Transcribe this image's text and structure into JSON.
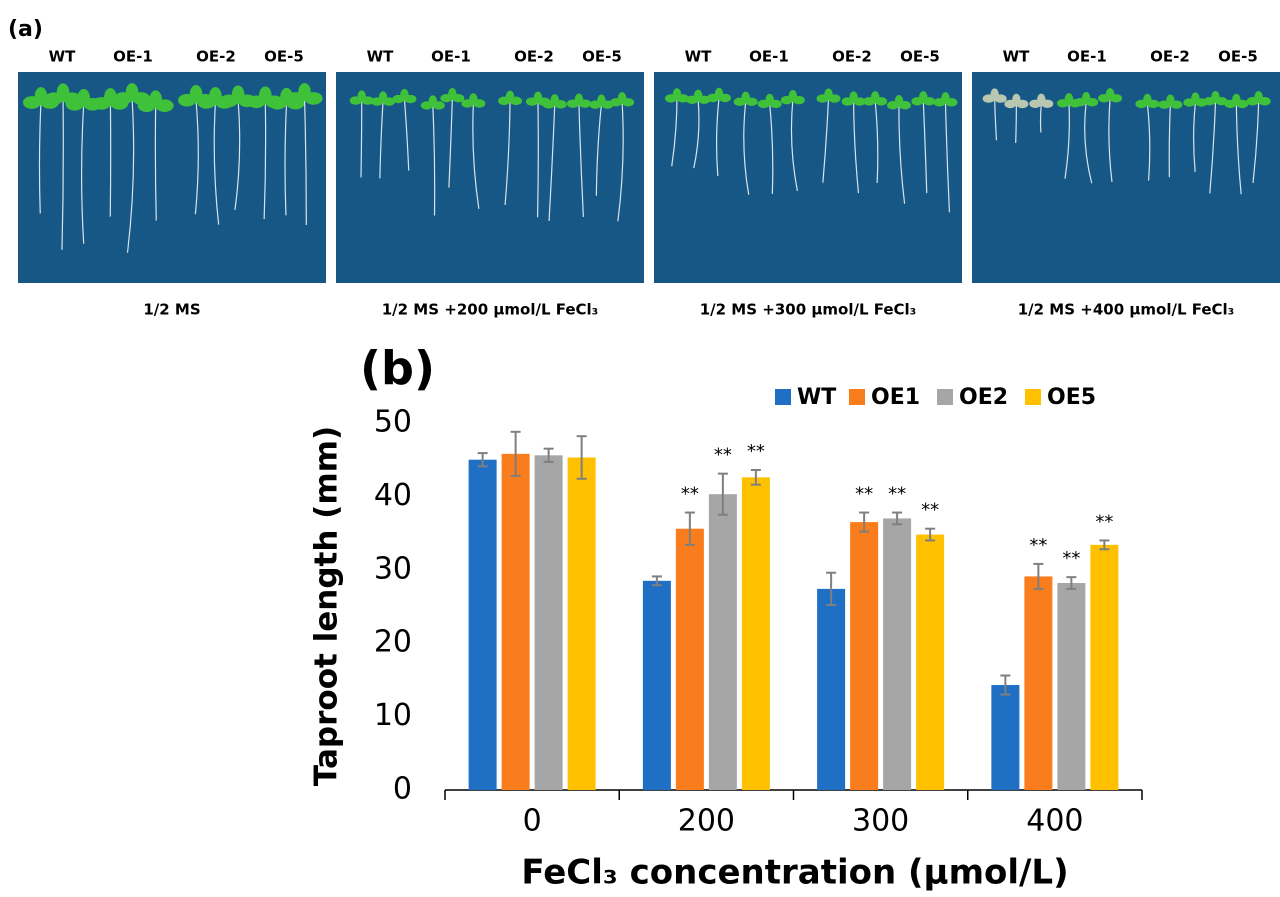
{
  "panel_a": {
    "label": "(a)",
    "panels": [
      {
        "lines": [
          "WT",
          "OE-1",
          "OE-2",
          "OE-5"
        ],
        "caption": "1/2 MS"
      },
      {
        "lines": [
          "WT",
          "OE-1",
          "OE-2",
          "OE-5"
        ],
        "caption": "1/2 MS +200 μmol/L FeCl₃"
      },
      {
        "lines": [
          "WT",
          "OE-1",
          "OE-2",
          "OE-5"
        ],
        "caption": "1/2 MS +300 μmol/L FeCl₃"
      },
      {
        "lines": [
          "WT",
          "OE-1",
          "OE-2",
          "OE-5"
        ],
        "caption": "1/2 MS +400 μmol/L FeCl₃"
      }
    ]
  },
  "chart_data": {
    "type": "bar",
    "title": "(b)",
    "y_label": "Taproot length (mm)",
    "x_label": "FeCl₃ concentration (μmol/L)",
    "categories": [
      "0",
      "200",
      "300",
      "400"
    ],
    "series": [
      {
        "name": "WT",
        "color": "#1f6fc5",
        "values": [
          45.0,
          28.5,
          27.4,
          14.3
        ],
        "errors": [
          0.9,
          0.6,
          2.2,
          1.3
        ],
        "significance": [
          null,
          null,
          null,
          null
        ]
      },
      {
        "name": "OE1",
        "color": "#f97d1d",
        "values": [
          45.8,
          35.6,
          36.5,
          29.1
        ],
        "errors": [
          3.0,
          2.2,
          1.3,
          1.7
        ],
        "significance": [
          null,
          "**",
          "**",
          "**"
        ]
      },
      {
        "name": "OE2",
        "color": "#a6a6a6",
        "values": [
          45.6,
          40.3,
          37.0,
          28.2
        ],
        "errors": [
          0.9,
          2.8,
          0.8,
          0.8
        ],
        "significance": [
          null,
          "**",
          "**",
          "**"
        ]
      },
      {
        "name": "OE5",
        "color": "#ffc000",
        "values": [
          45.3,
          42.6,
          34.8,
          33.4
        ],
        "errors": [
          2.9,
          1.0,
          0.8,
          0.6
        ],
        "significance": [
          null,
          "**",
          "**",
          "**"
        ]
      }
    ],
    "ylim": [
      0,
      50
    ],
    "yticks": [
      0,
      10,
      20,
      30,
      40,
      50
    ],
    "grid": false,
    "legend": "top-right"
  }
}
